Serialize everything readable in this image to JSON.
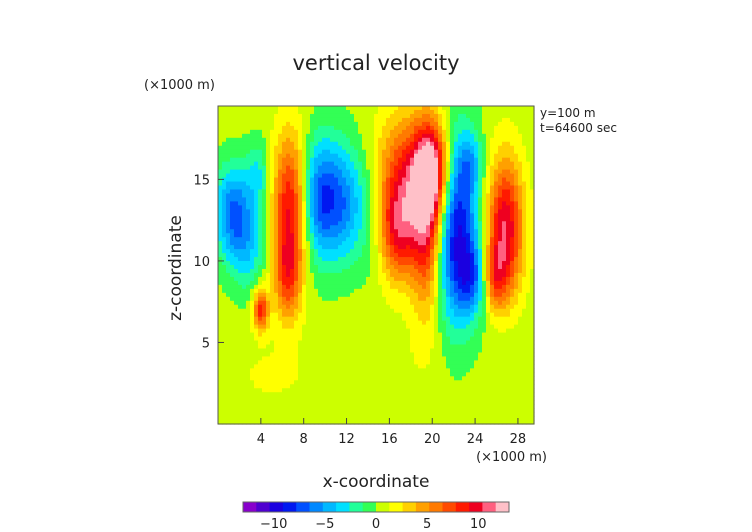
{
  "chart_data": {
    "type": "heatmap",
    "title": "vertical velocity",
    "xlabel": "x-coordinate",
    "ylabel": "z-coordinate",
    "x_unit": "(×1000 m)",
    "y_unit": "(×1000 m)",
    "annotations": [
      "y=100 m",
      "t=64600 sec"
    ],
    "xlim": [
      0,
      29.5
    ],
    "ylim": [
      0,
      19.5
    ],
    "x_ticks": [
      4,
      8,
      12,
      16,
      20,
      24,
      28
    ],
    "x_tick_labels": [
      "4",
      "8",
      "12",
      "16",
      "20",
      "24",
      "28"
    ],
    "y_ticks": [
      5,
      10,
      15
    ],
    "y_tick_labels": [
      "5",
      "10",
      "15"
    ],
    "colorbar": {
      "range": [
        -13,
        13
      ],
      "ticks": [
        -10,
        -5,
        0,
        5,
        10
      ],
      "tick_labels": [
        "−10",
        "−5",
        "0",
        "5",
        "10"
      ],
      "colors": [
        "#8800cc",
        "#5000d0",
        "#1a00e0",
        "#0018f0",
        "#0050ff",
        "#0088ff",
        "#00b8ff",
        "#00e0ff",
        "#22ff99",
        "#33ff55",
        "#ccff00",
        "#ffff00",
        "#ffd000",
        "#ffa000",
        "#ff7a00",
        "#ff4a00",
        "#ff1a00",
        "#ee0020",
        "#ff6080",
        "#ffc0c8"
      ]
    },
    "background_value": 0.5,
    "features": [
      {
        "x": 1.5,
        "z": 13.0,
        "sx": 1.3,
        "sz": 2.0,
        "value": -7
      },
      {
        "x": 2.8,
        "z": 10.5,
        "sx": 1.2,
        "sz": 1.8,
        "value": -3
      },
      {
        "x": 3.8,
        "z": 15.3,
        "sx": 0.8,
        "sz": 1.5,
        "value": -3
      },
      {
        "x": 4.0,
        "z": 7.0,
        "sx": 0.5,
        "sz": 0.9,
        "value": 8
      },
      {
        "x": 6.8,
        "z": 13.5,
        "sx": 1.2,
        "sz": 3.0,
        "value": 9
      },
      {
        "x": 6.5,
        "z": 9.0,
        "sx": 0.9,
        "sz": 2.0,
        "value": 6
      },
      {
        "x": 9.5,
        "z": 13.8,
        "sx": 1.4,
        "sz": 2.6,
        "value": -8
      },
      {
        "x": 12.0,
        "z": 13.5,
        "sx": 1.3,
        "sz": 2.5,
        "value": -5
      },
      {
        "x": 14.5,
        "z": 12.5,
        "sx": 1.0,
        "sz": 2.5,
        "value": -2
      },
      {
        "x": 17.3,
        "z": 14.5,
        "sx": 1.8,
        "sz": 3.0,
        "value": 8
      },
      {
        "x": 16.7,
        "z": 11.5,
        "sx": 1.2,
        "sz": 2.0,
        "value": 5
      },
      {
        "x": 20.0,
        "z": 15.5,
        "sx": 1.2,
        "sz": 2.2,
        "value": 11
      },
      {
        "x": 19.5,
        "z": 11.5,
        "sx": 1.0,
        "sz": 3.5,
        "value": 7
      },
      {
        "x": 22.3,
        "z": 12.0,
        "sx": 1.4,
        "sz": 4.0,
        "value": -10
      },
      {
        "x": 23.8,
        "z": 9.0,
        "sx": 1.0,
        "sz": 1.5,
        "value": -5
      },
      {
        "x": 26.8,
        "z": 12.0,
        "sx": 1.2,
        "sz": 3.0,
        "value": 10
      },
      {
        "x": 25.8,
        "z": 9.0,
        "sx": 0.8,
        "sz": 1.4,
        "value": 5
      },
      {
        "x": 23.5,
        "z": 16.0,
        "sx": 0.8,
        "sz": 1.2,
        "value": -3
      },
      {
        "x": 5.0,
        "z": 3.0,
        "sx": 3.0,
        "sz": 1.5,
        "value": 1
      },
      {
        "x": 17.0,
        "z": 3.5,
        "sx": 4.0,
        "sz": 2.0,
        "value": 0.5
      },
      {
        "x": 27.0,
        "z": 5.0,
        "sx": 1.5,
        "sz": 1.5,
        "value": -0.5
      }
    ]
  }
}
